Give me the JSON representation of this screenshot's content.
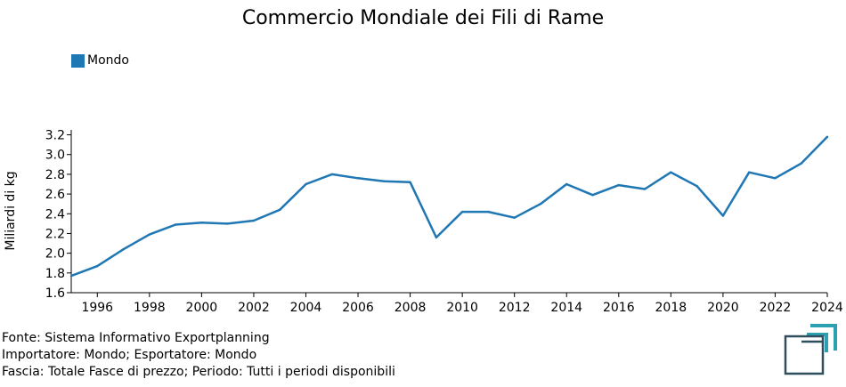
{
  "chart_data": {
    "type": "line",
    "title": "Commercio Mondiale dei Fili di Rame",
    "ylabel": "Miliardi di kg",
    "xlabel": "",
    "ylim": [
      1.6,
      3.25
    ],
    "xlim": [
      1995,
      2024
    ],
    "y_ticks": [
      "1.6",
      "1.8",
      "2.0",
      "2.2",
      "2.4",
      "2.6",
      "2.8",
      "3.0",
      "3.2"
    ],
    "x_ticks": [
      "1996",
      "1998",
      "2000",
      "2002",
      "2004",
      "2006",
      "2008",
      "2010",
      "2012",
      "2014",
      "2016",
      "2018",
      "2020",
      "2022",
      "2024"
    ],
    "legend_position": "top-left",
    "grid": false,
    "series": [
      {
        "name": "Mondo",
        "color": "#1f77b4",
        "x": [
          1995,
          1996,
          1997,
          1998,
          1999,
          2000,
          2001,
          2002,
          2003,
          2004,
          2005,
          2006,
          2007,
          2008,
          2009,
          2010,
          2011,
          2012,
          2013,
          2014,
          2015,
          2016,
          2017,
          2018,
          2019,
          2020,
          2021,
          2022,
          2023,
          2024
        ],
        "values": [
          1.77,
          1.87,
          2.04,
          2.19,
          2.29,
          2.31,
          2.3,
          2.33,
          2.44,
          2.7,
          2.8,
          2.76,
          2.73,
          2.72,
          2.16,
          2.42,
          2.42,
          2.36,
          2.5,
          2.7,
          2.59,
          2.69,
          2.65,
          2.82,
          2.68,
          2.38,
          2.82,
          2.76,
          2.91,
          3.18
        ]
      }
    ]
  },
  "footer": {
    "line1": "Fonte: Sistema Informativo Exportplanning",
    "line2": "Importatore: Mondo; Esportatore: Mondo",
    "line3": "Fascia: Totale Fasce di prezzo; Periodo: Tutti i periodi disponibili"
  },
  "colors": {
    "series": "#1f77b4",
    "logo_teal": "#2aa0b0",
    "logo_dark": "#2f4f5f"
  }
}
